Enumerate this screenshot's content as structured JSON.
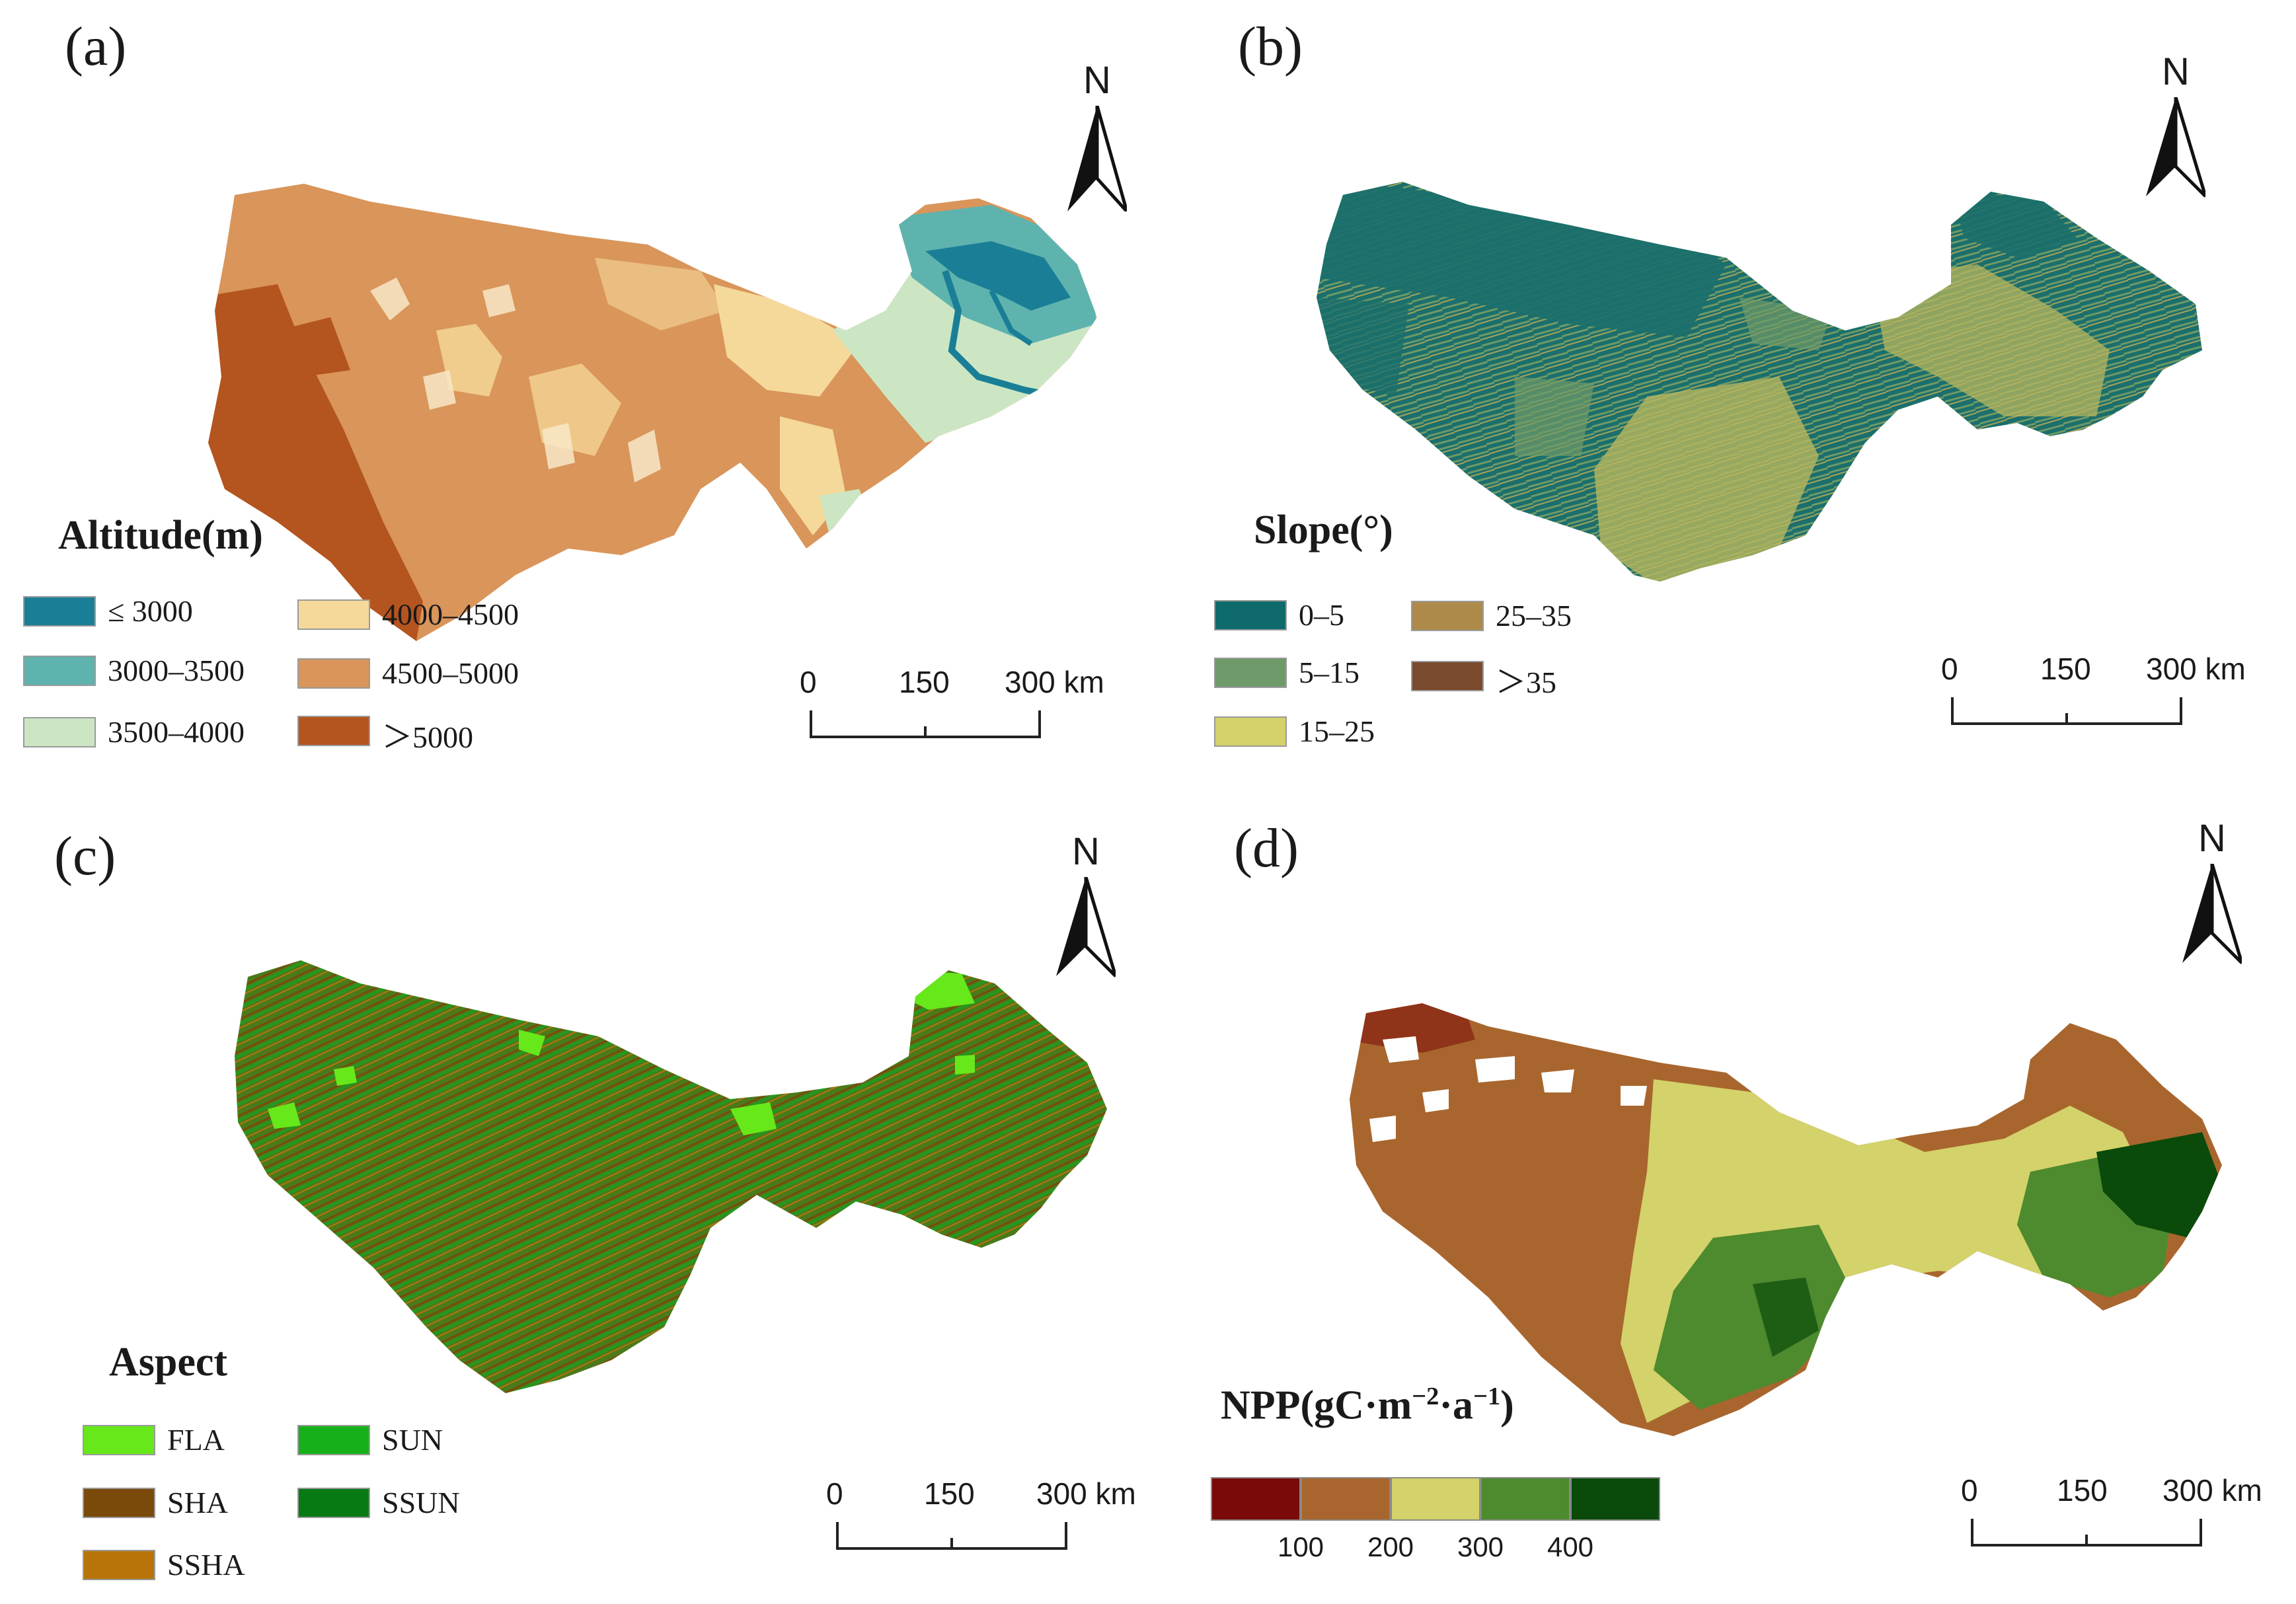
{
  "panels": {
    "a": {
      "label": "(a)",
      "legend_title": "Altitude(m)",
      "legend": [
        {
          "label": "≤ 3000",
          "color": "#1a7f96"
        },
        {
          "label": "3000–3500",
          "color": "#5fb3ae"
        },
        {
          "label": "3500–4000",
          "color": "#cce6c4"
        },
        {
          "label": "4000–4500",
          "color": "#f5d99a"
        },
        {
          "label": "4500–5000",
          "color": "#d9955a"
        },
        {
          "label": "＞5000",
          "color": "#b4541e"
        }
      ],
      "north": "N",
      "scale": [
        "0",
        "150",
        "300 km"
      ]
    },
    "b": {
      "label": "(b)",
      "legend_title": "Slope(°)",
      "legend": [
        {
          "label": "0–5",
          "color": "#0f6b6b"
        },
        {
          "label": "5–15",
          "color": "#6e9a6a"
        },
        {
          "label": "15–25",
          "color": "#d4d26a"
        },
        {
          "label": "25–35",
          "color": "#ad8a4a"
        },
        {
          "label": "＞35",
          "color": "#7a4a2e"
        }
      ],
      "north": "N",
      "scale": [
        "0",
        "150",
        "300 km"
      ]
    },
    "c": {
      "label": "(c)",
      "legend_title": "Aspect",
      "legend": [
        {
          "label": "FLA",
          "color": "#66e81a"
        },
        {
          "label": "SHA",
          "color": "#7a4a0a"
        },
        {
          "label": "SSHA",
          "color": "#b8740a"
        },
        {
          "label": "SUN",
          "color": "#16b01a"
        },
        {
          "label": "SSUN",
          "color": "#087a14"
        }
      ],
      "north": "N",
      "scale": [
        "0",
        "150",
        "300 km"
      ]
    },
    "d": {
      "label": "(d)",
      "legend_title_parts": {
        "base": "NPP(gC·m",
        "exp1": "−2",
        "mid": "·a",
        "exp2": "−1",
        "end": ")"
      },
      "colorbar": [
        "#7a0a0a",
        "#a8662e",
        "#d4d26a",
        "#4e8a2e",
        "#0a4a0a"
      ],
      "ticks": [
        "100",
        "200",
        "300",
        "400"
      ],
      "north": "N",
      "scale": [
        "0",
        "150",
        "300 km"
      ]
    }
  },
  "colors": {
    "a_base": "#d9955a",
    "a_high": "#b4541e",
    "a_mid": "#f5d99a",
    "a_low": "#cce6c4",
    "a_river": "#1a7f96",
    "a_teal": "#5fb3ae",
    "b_base": "#1b6f6c",
    "b_mix": "#7a9a5a",
    "b_light": "#b7b65e",
    "c_base": "#4a7a1a",
    "c_green": "#229a1e",
    "c_flat": "#66e81a",
    "d_brown": "#a8662e",
    "d_light": "#d4d26a",
    "d_green": "#4e8a2e",
    "d_dark": "#0a4a0a"
  }
}
